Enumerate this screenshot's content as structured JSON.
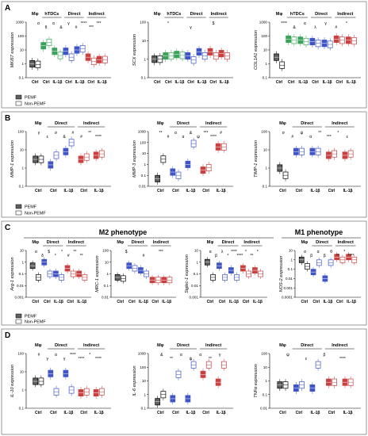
{
  "figure": {
    "panels": [
      {
        "letter": "A",
        "legend": [
          "PEMF",
          "Non-PEMF"
        ]
      },
      {
        "letter": "B",
        "legend": [
          "PEMF",
          "Non-PEMF"
        ]
      },
      {
        "letter": "C",
        "legend": [
          "PEMF",
          "Non-PEMF"
        ],
        "phenotypes": [
          "M2 phenotype",
          "M1 phenotype"
        ]
      },
      {
        "letter": "D",
        "legend": []
      }
    ],
    "colors": {
      "pemf_mphi": "#606060",
      "pemf_hdc": "#3aa35a",
      "pemf_direct": "#3f55c6",
      "pemf_indirect": "#c94040",
      "nonpemf": "#ffffff"
    }
  },
  "chart_data": [
    {
      "panel": "A",
      "type": "box",
      "ylabel": "MKI67 expression",
      "yscale": "log",
      "ylim": [
        0.1,
        1000
      ],
      "yticks": [
        "0.1",
        "1",
        "10",
        "100",
        "1000"
      ],
      "groups": [
        {
          "label": "Mφ",
          "categories": [
            "Ctrl"
          ]
        },
        {
          "label": "hTDCs",
          "categories": [
            "Ctrl",
            "IL-1β"
          ]
        },
        {
          "label": "Direct",
          "categories": [
            "Ctrl",
            "IL-1β"
          ]
        },
        {
          "label": "Indirect",
          "categories": [
            "Ctrl",
            "IL-1β"
          ]
        }
      ],
      "series": [
        {
          "name": "PEMF",
          "values": [
            1,
            20,
            8,
            8,
            10,
            3,
            2
          ]
        },
        {
          "name": "Non-PEMF",
          "values": [
            0.9,
            35,
            4,
            3,
            12,
            1.5,
            2
          ]
        }
      ],
      "annotations": [
        "α",
        "θ",
        "α",
        "&",
        "γ",
        "#",
        "****",
        "***",
        "***"
      ]
    },
    {
      "panel": "A",
      "type": "box",
      "ylabel": "SCX expression",
      "yscale": "log",
      "ylim": [
        0.1,
        100
      ],
      "yticks": [
        "0.1",
        "1",
        "10",
        "100"
      ],
      "groups": [
        {
          "label": "Mφ",
          "categories": [
            "Ctrl"
          ]
        },
        {
          "label": "hTDCs",
          "categories": [
            "Ctrl",
            "IL-1β"
          ]
        },
        {
          "label": "Direct",
          "categories": [
            "Ctrl",
            "IL-1β"
          ]
        },
        {
          "label": "Indirect",
          "categories": [
            "Ctrl",
            "IL-1β"
          ]
        }
      ],
      "series": [
        {
          "name": "PEMF",
          "values": [
            1,
            1.5,
            1.8,
            1.5,
            2.5,
            2.5,
            2
          ]
        },
        {
          "name": "Non-PEMF",
          "values": [
            1,
            1.5,
            1.6,
            0.9,
            1.5,
            1.5,
            1.5
          ]
        }
      ],
      "annotations": [
        "*",
        "γ",
        "$"
      ]
    },
    {
      "panel": "A",
      "type": "box",
      "ylabel": "COL1A1 expression",
      "yscale": "log",
      "ylim": [
        0.1,
        1000
      ],
      "yticks": [
        "0.1",
        "1",
        "10",
        "100",
        "1000"
      ],
      "groups": [
        {
          "label": "Mφ",
          "categories": [
            "Ctrl"
          ]
        },
        {
          "label": "hTDCs",
          "categories": [
            "Ctrl",
            "IL-1β"
          ]
        },
        {
          "label": "Direct",
          "categories": [
            "Ctrl",
            "IL-1β"
          ]
        },
        {
          "label": "Indirect",
          "categories": [
            "Ctrl",
            "IL-1β"
          ]
        }
      ],
      "series": [
        {
          "name": "PEMF",
          "values": [
            3,
            60,
            50,
            40,
            30,
            60,
            50
          ]
        },
        {
          "name": "Non-PEMF",
          "values": [
            0.8,
            50,
            40,
            30,
            25,
            50,
            45
          ]
        }
      ],
      "annotations": [
        "****",
        "&",
        "α",
        "λ",
        "γ",
        "#",
        "*"
      ]
    },
    {
      "panel": "B",
      "type": "box",
      "ylabel": "MMP-1 expression",
      "yscale": "log",
      "ylim": [
        0.1,
        100
      ],
      "yticks": [
        "0.1",
        "1",
        "10",
        "100"
      ],
      "groups": [
        {
          "label": "Mφ",
          "categories": [
            "Ctrl"
          ]
        },
        {
          "label": "Direct",
          "categories": [
            "Ctrl",
            "IL-1β"
          ]
        },
        {
          "label": "Indirect",
          "categories": [
            "Ctrl",
            "IL-1β"
          ]
        }
      ],
      "series": [
        {
          "name": "PEMF",
          "values": [
            3,
            1.5,
            8,
            3,
            5
          ]
        },
        {
          "name": "Non-PEMF",
          "values": [
            3,
            5,
            25,
            4,
            6
          ]
        }
      ],
      "annotations": [
        "γ",
        "ε",
        "σ",
        "&",
        "#",
        "#",
        "**",
        "****"
      ]
    },
    {
      "panel": "B",
      "type": "box",
      "ylabel": "MMP-3 expression",
      "yscale": "log",
      "ylim": [
        0.01,
        1000
      ],
      "yticks": [
        "0.01",
        "0.1",
        "1",
        "10",
        "100",
        "1000"
      ],
      "groups": [
        {
          "label": "Mφ",
          "categories": [
            "Ctrl"
          ]
        },
        {
          "label": "Direct",
          "categories": [
            "Ctrl",
            "IL-1β"
          ]
        },
        {
          "label": "Indirect",
          "categories": [
            "Ctrl",
            "IL-1β"
          ]
        }
      ],
      "series": [
        {
          "name": "PEMF",
          "values": [
            0.05,
            0.2,
            1,
            0.3,
            40
          ]
        },
        {
          "name": "Non-PEMF",
          "values": [
            3,
            0.1,
            80,
            0.5,
            40
          ]
        }
      ],
      "annotations": [
        "**",
        "#",
        "α",
        "α",
        "&",
        "ψ",
        "***",
        "****",
        "#"
      ]
    },
    {
      "panel": "B",
      "type": "box",
      "ylabel": "TIMP-1 expression",
      "yscale": "log",
      "ylim": [
        0.1,
        100
      ],
      "yticks": [
        "0.1",
        "1",
        "10",
        "100"
      ],
      "groups": [
        {
          "label": "Mφ",
          "categories": [
            "Ctrl"
          ]
        },
        {
          "label": "Direct",
          "categories": [
            "Ctrl",
            "IL-1β"
          ]
        },
        {
          "label": "Indirect",
          "categories": [
            "Ctrl",
            "IL-1β"
          ]
        }
      ],
      "series": [
        {
          "name": "PEMF",
          "values": [
            1,
            8,
            8,
            5,
            5
          ]
        },
        {
          "name": "Non-PEMF",
          "values": [
            0.4,
            8,
            8,
            6,
            6
          ]
        }
      ],
      "annotations": [
        "σ",
        "#",
        "ψ",
        "α",
        "**",
        "***",
        "*",
        "ε"
      ]
    },
    {
      "panel": "C",
      "type": "box",
      "ylabel": "Arg-1 expression",
      "yscale": "log",
      "ylim": [
        0.001,
        10
      ],
      "yticks": [
        "0.001",
        "0.01",
        "0.1",
        "1",
        "10"
      ],
      "groups": [
        {
          "label": "Mφ",
          "categories": [
            "Ctrl"
          ]
        },
        {
          "label": "Direct",
          "categories": [
            "Ctrl",
            "IL-1β"
          ]
        },
        {
          "label": "Indirect",
          "categories": [
            "Ctrl",
            "IL-1β"
          ]
        }
      ],
      "series": [
        {
          "name": "PEMF",
          "values": [
            0.5,
            1,
            0.1,
            0.3,
            0.1
          ]
        },
        {
          "name": "Non-PEMF",
          "values": [
            0.05,
            0.1,
            0.05,
            0.1,
            0.05
          ]
        }
      ],
      "annotations": [
        "α",
        "δ",
        "$",
        "*",
        "*",
        "#",
        "**",
        "**"
      ]
    },
    {
      "panel": "C",
      "type": "box",
      "ylabel": "MRC-1 expression",
      "yscale": "log",
      "ylim": [
        0.01,
        100
      ],
      "yticks": [
        "0.01",
        "0.1",
        "1",
        "10",
        "100"
      ],
      "groups": [
        {
          "label": "Mφ",
          "categories": [
            "Ctrl"
          ]
        },
        {
          "label": "Direct",
          "categories": [
            "Ctrl",
            "IL-1β"
          ]
        },
        {
          "label": "Indirect",
          "categories": [
            "Ctrl",
            "IL-1β"
          ]
        }
      ],
      "series": [
        {
          "name": "PEMF",
          "values": [
            0.5,
            5,
            2,
            0.3,
            0.3
          ]
        },
        {
          "name": "Non-PEMF",
          "values": [
            0.4,
            3,
            1,
            0.3,
            0.3
          ]
        }
      ],
      "annotations": [
        "$",
        "#",
        "***"
      ]
    },
    {
      "panel": "C",
      "type": "box",
      "ylabel": "Siglec-1 expression",
      "yscale": "log",
      "ylim": [
        0.001,
        10
      ],
      "yticks": [
        "0.001",
        "0.01",
        "0.1",
        "1",
        "10"
      ],
      "groups": [
        {
          "label": "Mφ",
          "categories": [
            "Ctrl"
          ]
        },
        {
          "label": "Direct",
          "categories": [
            "Ctrl",
            "IL-1β"
          ]
        },
        {
          "label": "Indirect",
          "categories": [
            "Ctrl",
            "IL-1β"
          ]
        }
      ],
      "series": [
        {
          "name": "PEMF",
          "values": [
            1,
            0.5,
            0.2,
            0.3,
            0.2
          ]
        },
        {
          "name": "Non-PEMF",
          "values": [
            0.05,
            0.05,
            0.05,
            0.1,
            0.1
          ]
        }
      ],
      "annotations": [
        "α",
        "β",
        "λ",
        "*",
        "****",
        "****",
        "*",
        "**",
        "*"
      ]
    },
    {
      "panel": "C",
      "type": "box",
      "ylabel": "NOS-2 expression",
      "yscale": "log",
      "ylim": [
        0.0001,
        10
      ],
      "yticks": [
        "0.0001",
        "0.001",
        "0.01",
        "0.1",
        "1",
        "10"
      ],
      "groups": [
        {
          "label": "Mφ",
          "categories": [
            "Ctrl"
          ]
        },
        {
          "label": "Direct",
          "categories": [
            "Ctrl",
            "IL-1β"
          ]
        },
        {
          "label": "Indirect",
          "categories": [
            "Ctrl",
            "IL-1β"
          ]
        }
      ],
      "series": [
        {
          "name": "PEMF",
          "values": [
            1,
            0.05,
            0.01,
            2,
            2
          ]
        },
        {
          "name": "Non-PEMF",
          "values": [
            0.2,
            0.5,
            0.5,
            1,
            1
          ]
        }
      ],
      "annotations": [
        "α",
        "β",
        "α",
        "β",
        "θ",
        "**",
        "*",
        "****"
      ]
    },
    {
      "panel": "D",
      "type": "box",
      "ylabel": "IL-10 expression",
      "yscale": "log",
      "ylim": [
        0.1,
        100
      ],
      "yticks": [
        "0.1",
        "1",
        "10",
        "100"
      ],
      "groups": [
        {
          "label": "Mφ",
          "categories": [
            "Ctrl"
          ]
        },
        {
          "label": "Direct",
          "categories": [
            "Ctrl",
            "IL-1β"
          ]
        },
        {
          "label": "Indirect",
          "categories": [
            "Ctrl",
            "IL-1β"
          ]
        }
      ],
      "series": [
        {
          "name": "PEMF",
          "values": [
            3,
            8,
            8,
            0.7,
            0.7
          ]
        },
        {
          "name": "Non-PEMF",
          "values": [
            3,
            0.8,
            1,
            0.8,
            0.8
          ]
        }
      ],
      "annotations": [
        "#",
        "γ",
        "α",
        "γ",
        "****",
        "****",
        "*",
        "****"
      ]
    },
    {
      "panel": "D",
      "type": "box",
      "ylabel": "IL-6 expression",
      "yscale": "log",
      "ylim": [
        0.1,
        1000
      ],
      "yticks": [
        "0.1",
        "1",
        "10",
        "100",
        "1000"
      ],
      "groups": [
        {
          "label": "Mφ",
          "categories": [
            "Ctrl"
          ]
        },
        {
          "label": "Direct",
          "categories": [
            "Ctrl",
            "IL-1β"
          ]
        },
        {
          "label": "Indirect",
          "categories": [
            "Ctrl",
            "IL-1β"
          ]
        }
      ],
      "series": [
        {
          "name": "PEMF",
          "values": [
            0.3,
            0.5,
            0.5,
            30,
            8
          ]
        },
        {
          "name": "Non-PEMF",
          "values": [
            1,
            30,
            150,
            150,
            150
          ]
        }
      ],
      "annotations": [
        "&",
        "**",
        "α",
        "ψ",
        "α",
        "**",
        "γ"
      ]
    },
    {
      "panel": "D",
      "type": "box",
      "ylabel": "TNFα expression",
      "yscale": "log",
      "ylim": [
        0.01,
        100
      ],
      "yticks": [
        "0.01",
        "0.1",
        "1",
        "10",
        "100"
      ],
      "groups": [
        {
          "label": "Mφ",
          "categories": [
            "Ctrl"
          ]
        },
        {
          "label": "Direct",
          "categories": [
            "Ctrl",
            "IL-1β"
          ]
        },
        {
          "label": "Indirect",
          "categories": [
            "Ctrl",
            "IL-1β"
          ]
        }
      ],
      "series": [
        {
          "name": "PEMF",
          "values": [
            0.5,
            0.3,
            0.3,
            0.8,
            0.8
          ]
        },
        {
          "name": "Non-PEMF",
          "values": [
            0.5,
            0.5,
            15,
            0.8,
            0.8
          ]
        }
      ],
      "annotations": [
        "ψ",
        "ε",
        "β",
        "****"
      ]
    }
  ]
}
